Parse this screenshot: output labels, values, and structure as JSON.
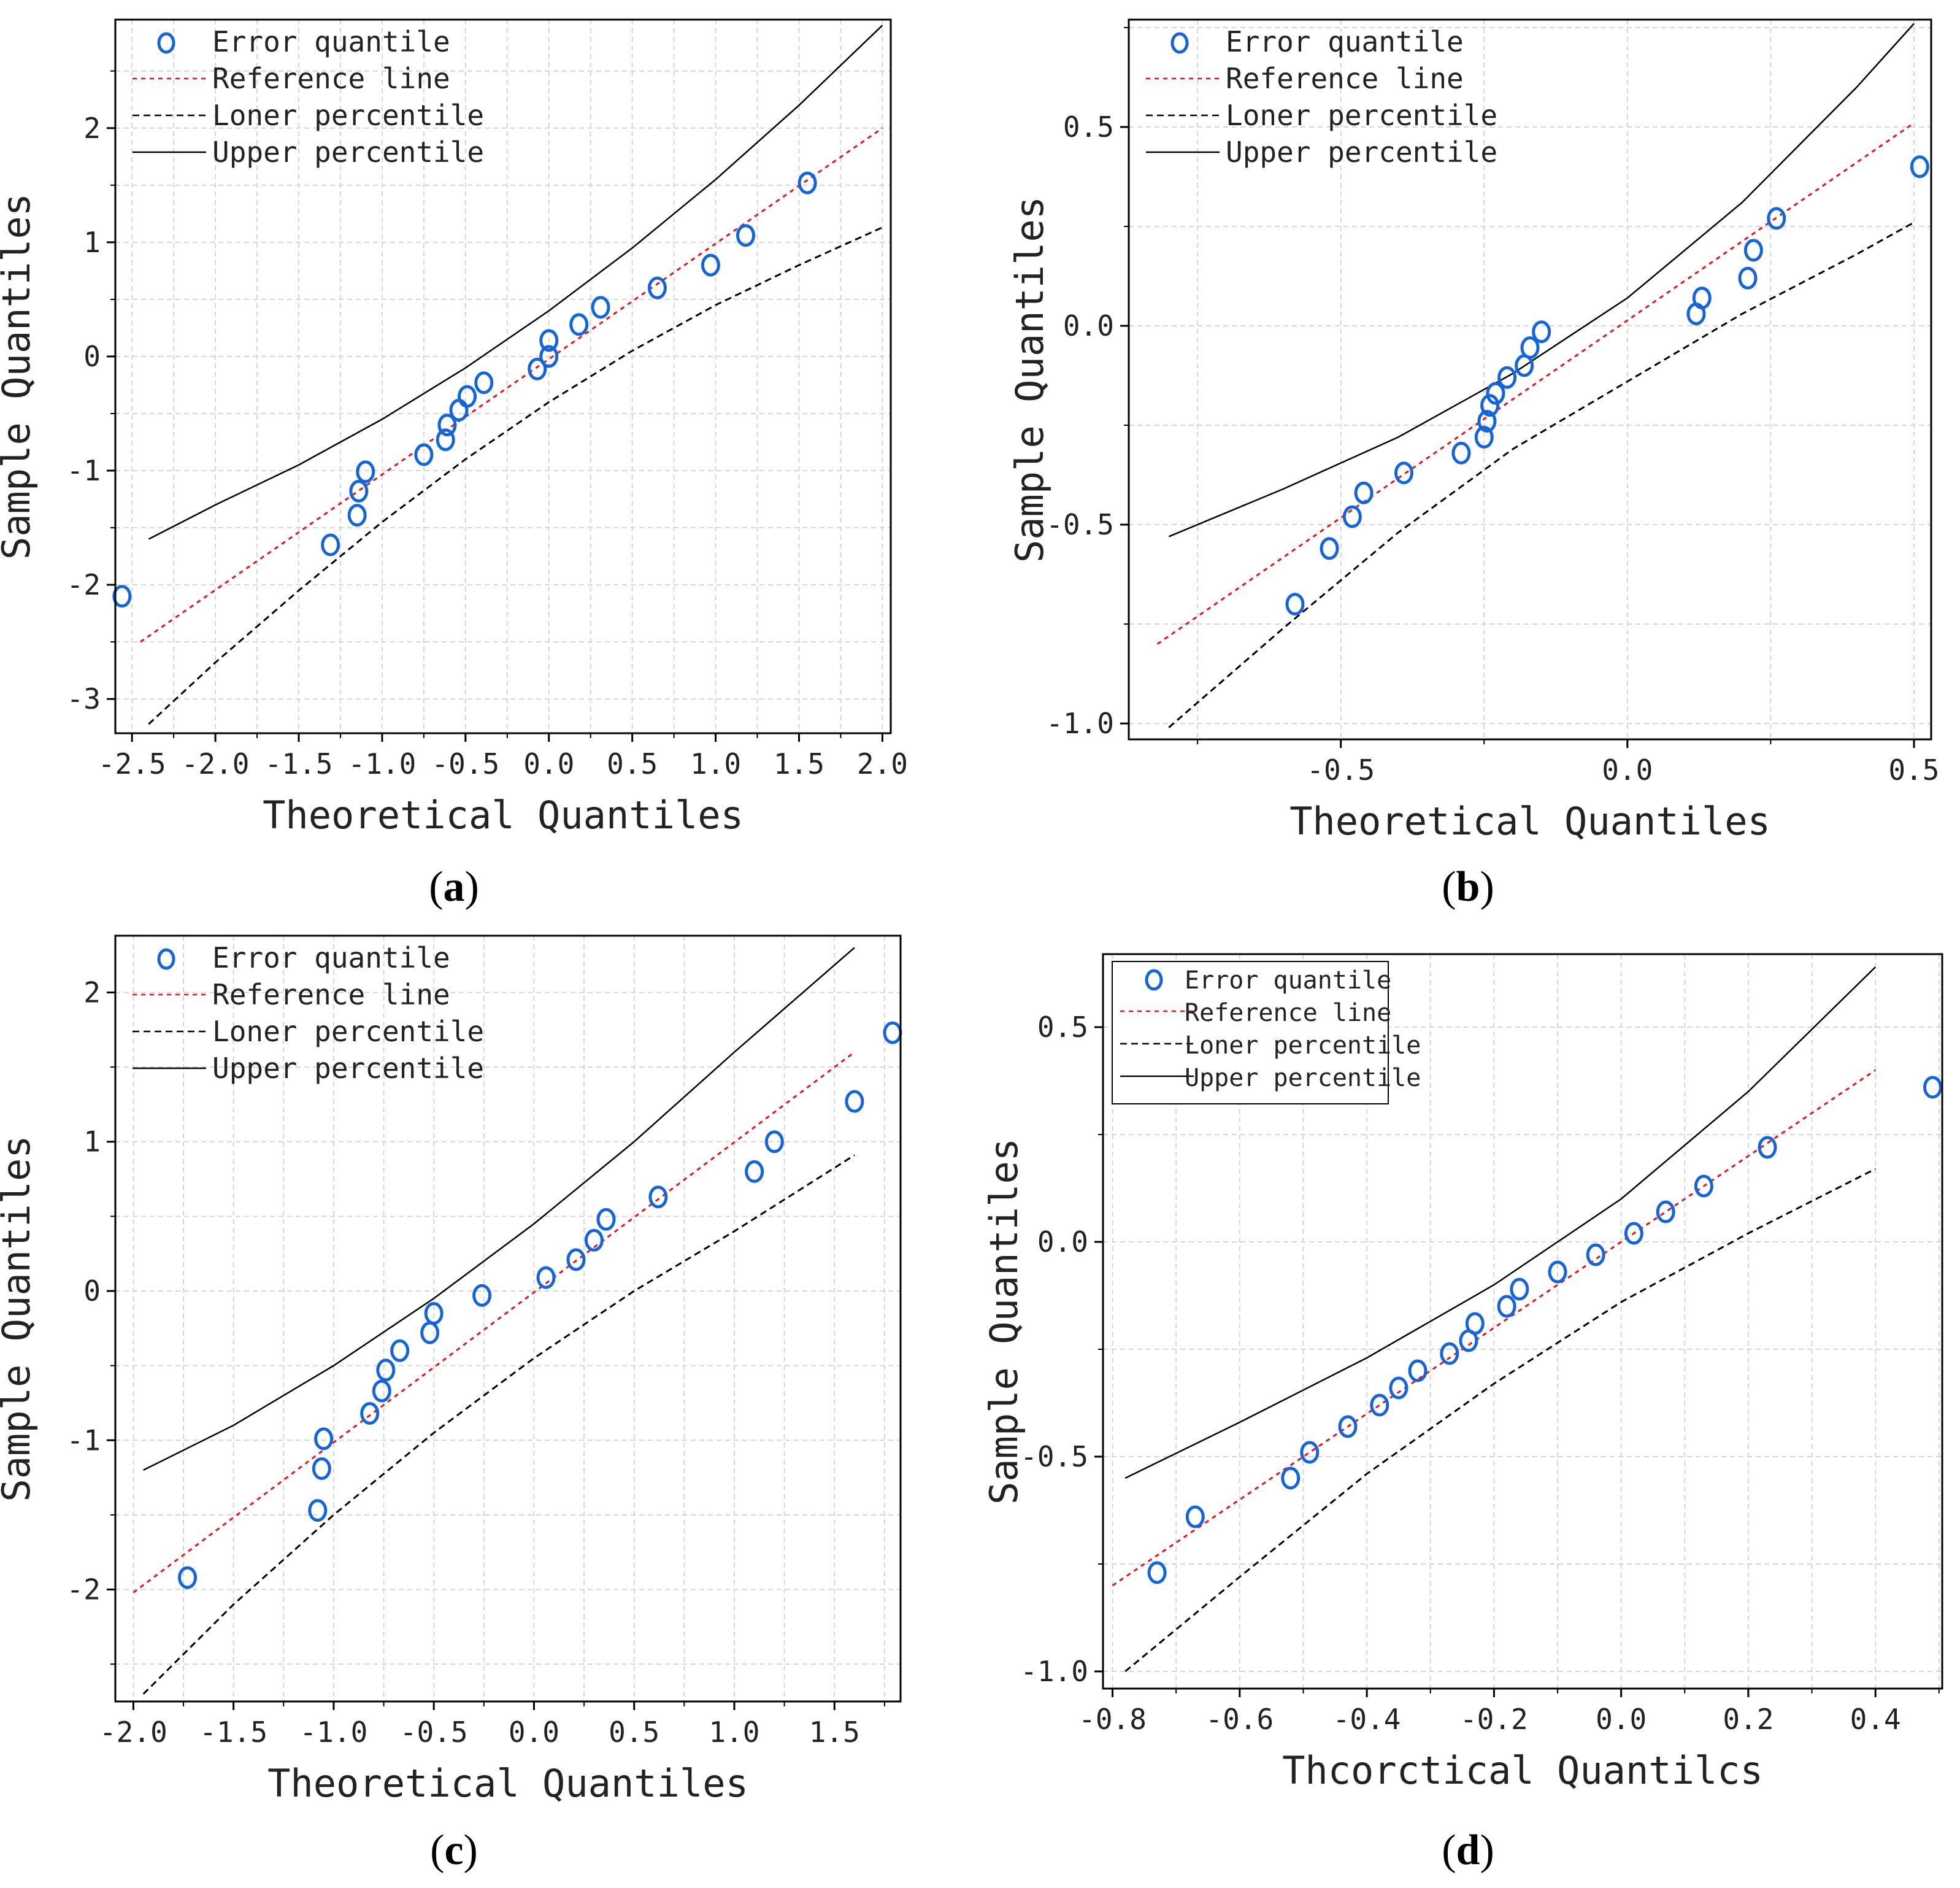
{
  "colors": {
    "points": "#1565d8",
    "reference": "#e8141c",
    "lower": "#000000",
    "upper": "#000000",
    "grid": "#d6d6d6",
    "axis": "#000000"
  },
  "chart_data": [
    {
      "id": "a",
      "type": "scatter",
      "caption": "a",
      "xlabel": "Theoretical Quantiles",
      "ylabel": "Sample Quantiles",
      "xlim": [
        -2.6,
        2.05
      ],
      "ylim": [
        -3.3,
        2.95
      ],
      "xticks": [
        -2.5,
        -2.0,
        -1.5,
        -1.0,
        -0.5,
        0.0,
        0.5,
        1.0,
        1.5,
        2.0
      ],
      "xtick_labels": [
        "-2.5",
        "-2.0",
        "-1.5",
        "-1.0",
        "-0.5",
        "0.0",
        "0.5",
        "1.0",
        "1.5",
        "2.0"
      ],
      "yticks": [
        -3,
        -2,
        -1,
        0,
        1,
        2
      ],
      "ytick_labels": [
        "-3",
        "-2",
        "-1",
        "0",
        "1",
        "2"
      ],
      "legend": {
        "entries": [
          "Error quantile",
          "Reference line",
          "Loner percentile",
          "Upper percentile"
        ],
        "position": "top-left",
        "boxed": false
      },
      "series": [
        {
          "name": "Error quantile",
          "kind": "points",
          "x": [
            -2.56,
            -1.31,
            -1.15,
            -1.14,
            -1.1,
            -0.75,
            -0.62,
            -0.61,
            -0.54,
            -0.49,
            -0.39,
            -0.07,
            0.0,
            0.0,
            0.18,
            0.31,
            0.65,
            0.97,
            1.18,
            1.55
          ],
          "y": [
            -2.1,
            -1.65,
            -1.39,
            -1.18,
            -1.01,
            -0.86,
            -0.73,
            -0.6,
            -0.47,
            -0.35,
            -0.23,
            -0.11,
            0.0,
            0.14,
            0.28,
            0.43,
            0.6,
            0.8,
            1.06,
            1.52
          ]
        },
        {
          "name": "Reference line",
          "kind": "line",
          "style": "dotted",
          "x": [
            -2.45,
            2.0
          ],
          "y": [
            -2.5,
            2.0
          ]
        },
        {
          "name": "Loner percentile",
          "kind": "line",
          "style": "dashed",
          "x": [
            -2.4,
            -2.0,
            -1.5,
            -1.0,
            -0.5,
            0.0,
            0.5,
            1.0,
            1.5,
            2.0
          ],
          "y": [
            -3.22,
            -2.68,
            -2.05,
            -1.45,
            -0.9,
            -0.4,
            0.05,
            0.45,
            0.8,
            1.13
          ]
        },
        {
          "name": "Upper percentile",
          "kind": "line",
          "style": "solid",
          "x": [
            -2.4,
            -2.0,
            -1.5,
            -1.0,
            -0.5,
            0.0,
            0.5,
            1.0,
            1.5,
            2.0
          ],
          "y": [
            -1.6,
            -1.3,
            -0.95,
            -0.55,
            -0.1,
            0.4,
            0.95,
            1.55,
            2.2,
            2.9
          ]
        }
      ]
    },
    {
      "id": "b",
      "type": "scatter",
      "caption": "b",
      "xlabel": "Theoretical Quantiles",
      "ylabel": "Sample Quantiles",
      "xlim": [
        -0.87,
        0.53
      ],
      "ylim": [
        -1.04,
        0.77
      ],
      "xticks": [
        -0.5,
        0.0,
        0.5
      ],
      "xtick_labels": [
        "-0.5",
        "0.0",
        "0.5"
      ],
      "yticks": [
        -1.0,
        -0.5,
        0.0,
        0.5
      ],
      "ytick_labels": [
        "-1.0",
        "-0.5",
        "0.0",
        "0.5"
      ],
      "legend": {
        "entries": [
          "Error quantile",
          "Reference line",
          "Loner percentile",
          "Upper percentile"
        ],
        "position": "top-left",
        "boxed": false
      },
      "series": [
        {
          "name": "Error quantile",
          "kind": "points",
          "x": [
            -0.58,
            -0.52,
            -0.48,
            -0.46,
            -0.39,
            -0.29,
            -0.25,
            -0.245,
            -0.24,
            -0.23,
            -0.21,
            -0.18,
            -0.17,
            -0.15,
            0.12,
            0.13,
            0.21,
            0.22,
            0.26,
            0.51
          ],
          "y": [
            -0.7,
            -0.56,
            -0.48,
            -0.42,
            -0.37,
            -0.32,
            -0.28,
            -0.24,
            -0.2,
            -0.17,
            -0.13,
            -0.1,
            -0.055,
            -0.015,
            0.03,
            0.07,
            0.12,
            0.19,
            0.27,
            0.4
          ]
        },
        {
          "name": "Reference line",
          "kind": "line",
          "style": "dotted",
          "x": [
            -0.82,
            0.5
          ],
          "y": [
            -0.8,
            0.51
          ]
        },
        {
          "name": "Loner percentile",
          "kind": "line",
          "style": "dashed",
          "x": [
            -0.8,
            -0.6,
            -0.4,
            -0.2,
            0.0,
            0.2,
            0.4,
            0.5
          ],
          "y": [
            -1.01,
            -0.76,
            -0.52,
            -0.31,
            -0.14,
            0.03,
            0.18,
            0.26
          ]
        },
        {
          "name": "Upper percentile",
          "kind": "line",
          "style": "solid",
          "x": [
            -0.8,
            -0.6,
            -0.4,
            -0.2,
            0.0,
            0.2,
            0.4,
            0.5
          ],
          "y": [
            -0.53,
            -0.41,
            -0.28,
            -0.12,
            0.07,
            0.31,
            0.6,
            0.76
          ]
        }
      ]
    },
    {
      "id": "c",
      "type": "scatter",
      "caption": "c",
      "xlabel": "Theoretical Quantiles",
      "ylabel": "Sample Quantiles",
      "xlim": [
        -2.09,
        1.83
      ],
      "ylim": [
        -2.75,
        2.38
      ],
      "xticks": [
        -2.0,
        -1.5,
        -1.0,
        -0.5,
        0.0,
        0.5,
        1.0,
        1.5
      ],
      "xtick_labels": [
        "-2.0",
        "-1.5",
        "-1.0",
        "-0.5",
        "0.0",
        "0.5",
        "1.0",
        "1.5"
      ],
      "yticks": [
        -2,
        -1,
        0,
        1,
        2
      ],
      "ytick_labels": [
        "-2",
        "-1",
        "0",
        "1",
        "2"
      ],
      "legend": {
        "entries": [
          "Error quantile",
          "Reference line",
          "Loner percentile",
          "Upper percentile"
        ],
        "position": "top-left",
        "boxed": false
      },
      "series": [
        {
          "name": "Error quantile",
          "kind": "points",
          "x": [
            -1.73,
            -1.08,
            -1.06,
            -1.05,
            -0.82,
            -0.76,
            -0.74,
            -0.67,
            -0.52,
            -0.5,
            -0.26,
            0.06,
            0.21,
            0.3,
            0.36,
            0.62,
            1.1,
            1.2,
            1.6,
            1.79
          ],
          "y": [
            -1.92,
            -1.47,
            -1.19,
            -0.99,
            -0.82,
            -0.67,
            -0.53,
            -0.4,
            -0.28,
            -0.15,
            -0.03,
            0.09,
            0.21,
            0.34,
            0.48,
            0.63,
            0.8,
            1.0,
            1.27,
            1.73
          ]
        },
        {
          "name": "Reference line",
          "kind": "line",
          "style": "dotted",
          "x": [
            -2.0,
            1.6
          ],
          "y": [
            -2.02,
            1.6
          ]
        },
        {
          "name": "Loner percentile",
          "kind": "line",
          "style": "dashed",
          "x": [
            -1.95,
            -1.5,
            -1.0,
            -0.5,
            0.0,
            0.5,
            1.0,
            1.6
          ],
          "y": [
            -2.7,
            -2.1,
            -1.5,
            -0.95,
            -0.45,
            0.0,
            0.4,
            0.91
          ]
        },
        {
          "name": "Upper percentile",
          "kind": "line",
          "style": "solid",
          "x": [
            -1.95,
            -1.5,
            -1.0,
            -0.5,
            0.0,
            0.5,
            1.0,
            1.6
          ],
          "y": [
            -1.2,
            -0.9,
            -0.5,
            -0.05,
            0.45,
            1.0,
            1.6,
            2.3
          ]
        }
      ]
    },
    {
      "id": "d",
      "type": "scatter",
      "caption": "d",
      "xlabel": "Thcorctical Quantilcs",
      "ylabel": "Sample Quantiles",
      "xlim": [
        -0.815,
        0.505
      ],
      "ylim": [
        -1.04,
        0.67
      ],
      "xticks": [
        -0.8,
        -0.6,
        -0.4,
        -0.2,
        0.0,
        0.2,
        0.4
      ],
      "xtick_labels": [
        "-0.8",
        "-0.6",
        "-0.4",
        "-0.2",
        "0.0",
        "0.2",
        "0.4"
      ],
      "yticks": [
        -1.0,
        -0.5,
        0.0,
        0.5
      ],
      "ytick_labels": [
        "-1.0",
        "-0.5",
        "0.0",
        "0.5"
      ],
      "legend": {
        "entries": [
          "Error quantile",
          "Reference line",
          "Loner percentile",
          "Upper percentile"
        ],
        "position": "top-left",
        "boxed": true
      },
      "series": [
        {
          "name": "Error quantile",
          "kind": "points",
          "x": [
            -0.73,
            -0.67,
            -0.52,
            -0.49,
            -0.43,
            -0.38,
            -0.35,
            -0.32,
            -0.27,
            -0.24,
            -0.23,
            -0.18,
            -0.16,
            -0.1,
            -0.04,
            0.02,
            0.07,
            0.13,
            0.23,
            0.49
          ],
          "y": [
            -0.77,
            -0.64,
            -0.55,
            -0.49,
            -0.43,
            -0.38,
            -0.34,
            -0.3,
            -0.26,
            -0.23,
            -0.19,
            -0.15,
            -0.11,
            -0.07,
            -0.03,
            0.02,
            0.07,
            0.13,
            0.22,
            0.36
          ]
        },
        {
          "name": "Reference line",
          "kind": "line",
          "style": "dotted",
          "x": [
            -0.8,
            0.4
          ],
          "y": [
            -0.8,
            0.4
          ]
        },
        {
          "name": "Loner percentile",
          "kind": "line",
          "style": "dashed",
          "x": [
            -0.78,
            -0.6,
            -0.4,
            -0.2,
            0.0,
            0.2,
            0.4
          ],
          "y": [
            -1.0,
            -0.78,
            -0.54,
            -0.33,
            -0.14,
            0.02,
            0.17
          ]
        },
        {
          "name": "Upper percentile",
          "kind": "line",
          "style": "solid",
          "x": [
            -0.78,
            -0.6,
            -0.4,
            -0.2,
            0.0,
            0.2,
            0.4
          ],
          "y": [
            -0.55,
            -0.42,
            -0.27,
            -0.1,
            0.1,
            0.35,
            0.64
          ]
        }
      ]
    }
  ]
}
